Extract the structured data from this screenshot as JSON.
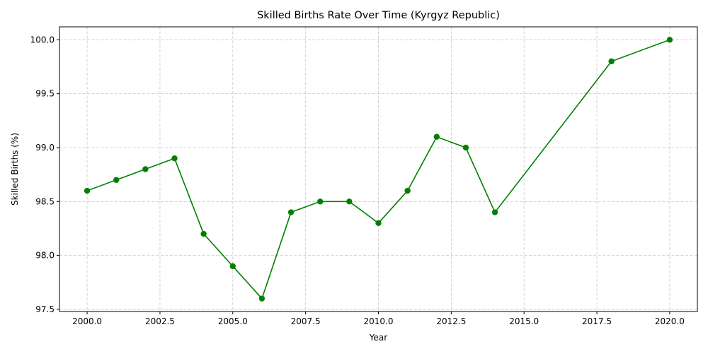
{
  "chart_data": {
    "type": "line",
    "title": "Skilled Births Rate Over Time (Kyrgyz Republic)",
    "xlabel": "Year",
    "ylabel": "Skilled Births (%)",
    "xlim": [
      1999.05,
      2020.95
    ],
    "ylim": [
      97.48,
      100.12
    ],
    "xticks": [
      2000.0,
      2002.5,
      2005.0,
      2007.5,
      2010.0,
      2012.5,
      2015.0,
      2017.5,
      2020.0
    ],
    "xtick_labels": [
      "2000.0",
      "2002.5",
      "2005.0",
      "2007.5",
      "2010.0",
      "2012.5",
      "2015.0",
      "2017.5",
      "2020.0"
    ],
    "yticks": [
      97.5,
      98.0,
      98.5,
      99.0,
      99.5,
      100.0
    ],
    "ytick_labels": [
      "97.5",
      "98.0",
      "98.5",
      "99.0",
      "99.5",
      "100.0"
    ],
    "grid": true,
    "line_color": "#008000",
    "grid_color": "#c8c8c8",
    "series": [
      {
        "x": [
          2000,
          2001,
          2002,
          2003,
          2004,
          2005,
          2006,
          2007,
          2008,
          2009,
          2010,
          2011,
          2012,
          2013,
          2014,
          2018,
          2020
        ],
        "values": [
          98.6,
          98.7,
          98.8,
          98.9,
          98.2,
          97.9,
          97.6,
          98.4,
          98.5,
          98.5,
          98.3,
          98.6,
          99.1,
          99.0,
          98.4,
          99.8,
          100.0
        ]
      }
    ]
  }
}
